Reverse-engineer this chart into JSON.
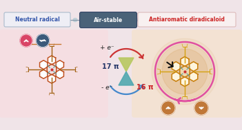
{
  "bg_color": "#f0e4e8",
  "label_left": "Neutral radical",
  "label_center": "Air-stable",
  "label_right": "Antiaromatic diradicaloid",
  "label_left_color": "#3355aa",
  "label_center_color": "#ffffff",
  "label_center_bg": "#4a6278",
  "label_right_color": "#cc2222",
  "minus_e_text": "- e⁻",
  "plus_e_text": "+ e⁻",
  "pi_17_text": "17 π",
  "pi_16_text": "16 π",
  "arrow_remove_color": "#cc3333",
  "arrow_add_color": "#4488cc",
  "spin_left_up_color": "#d94466",
  "spin_left_updown_color": "#3a5a7a",
  "spin_right_color": "#c07838",
  "corrole_left_color": "#c05020",
  "corrole_right_color": "#c88010",
  "bowtie_color_top": "#b8c860",
  "bowtie_color_bottom": "#50a8b0",
  "pink_arrow_color": "#e050a0"
}
